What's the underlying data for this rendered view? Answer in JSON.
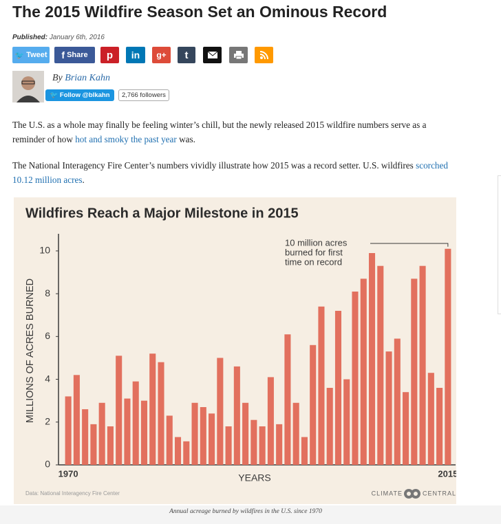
{
  "header": {
    "title": "The 2015 Wildfire Season Set an Ominous Record",
    "published_label": "Published:",
    "published_date": "January 6th, 2016"
  },
  "share": {
    "tweet": "Tweet",
    "facebook": "Share",
    "pinterest": "p",
    "linkedin": "in",
    "googleplus": "g+",
    "tumblr": "t"
  },
  "author": {
    "by": "By",
    "name": "Brian Kahn",
    "follow": "Follow @blkahn",
    "followers": "2,766 followers"
  },
  "paragraphs": [
    [
      "The U.S. as a whole may finally be feeling winter’s chill, but the newly released 2015 wildfire numbers serve as a reminder of how ",
      "hot and smoky the past year",
      " was."
    ],
    [
      "The National Interagency Fire Center’s numbers vividly illustrate how 2015 was a record setter. U.S. wildfires ",
      "scorched 10.12 million acres",
      "."
    ]
  ],
  "chart_data": {
    "type": "bar",
    "title": "Wildfires Reach a Major Milestone in 2015",
    "y_label": "MILLIONS OF ACRES BURNED",
    "x_label": "YEARS",
    "annotation": [
      "10 million acres",
      "burned for first",
      "time on record"
    ],
    "source": "Data: National Interagency Fire Center",
    "brand": [
      "CLIMATE",
      "CENTRAL"
    ],
    "categories": [
      "1970",
      null,
      null,
      null,
      null,
      null,
      null,
      null,
      null,
      null,
      null,
      null,
      null,
      null,
      null,
      null,
      null,
      null,
      null,
      null,
      null,
      null,
      null,
      null,
      null,
      null,
      null,
      null,
      null,
      null,
      null,
      null,
      null,
      null,
      null,
      null,
      null,
      null,
      null,
      null,
      null,
      null,
      null,
      null,
      null,
      "2015"
    ],
    "values": [
      3.2,
      4.2,
      2.6,
      1.9,
      2.9,
      1.8,
      5.1,
      3.1,
      3.9,
      3.0,
      5.2,
      4.8,
      2.3,
      1.3,
      1.1,
      2.9,
      2.7,
      2.4,
      5.0,
      1.8,
      4.6,
      2.9,
      2.1,
      1.8,
      4.1,
      1.9,
      6.1,
      2.9,
      1.3,
      5.6,
      7.4,
      3.6,
      7.2,
      4.0,
      8.1,
      8.7,
      9.9,
      9.3,
      5.3,
      5.9,
      3.4,
      8.7,
      9.3,
      4.3,
      3.6,
      10.1
    ],
    "color": "#e2705e",
    "ylim": [
      0,
      10.8
    ],
    "yticks": [
      0,
      2,
      4,
      6,
      8,
      10
    ]
  },
  "caption": "Annual acreage burned by wildfires in the U.S. since 1970"
}
